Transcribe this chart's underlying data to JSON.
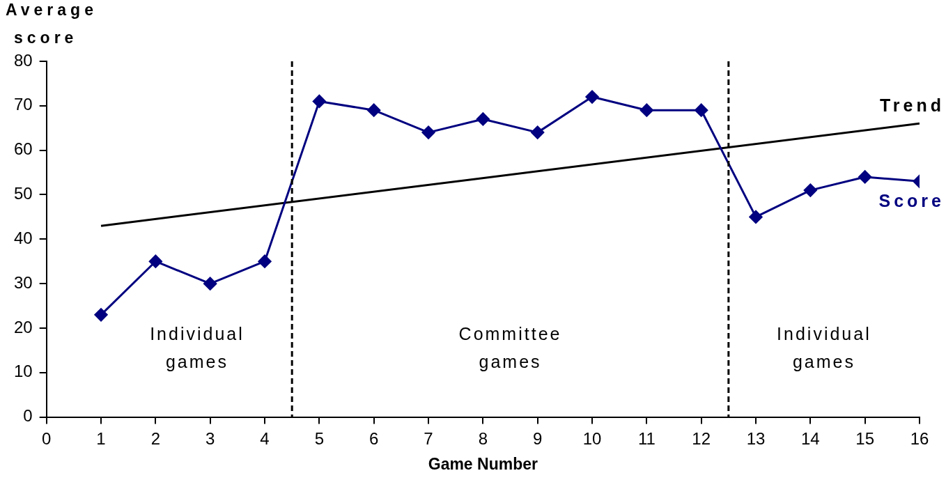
{
  "chart_data": {
    "type": "line",
    "xlabel": "Game Number",
    "ylabel": "Average score",
    "x": [
      1,
      2,
      3,
      4,
      5,
      6,
      7,
      8,
      9,
      10,
      11,
      12,
      13,
      14,
      15,
      16
    ],
    "series": [
      {
        "name": "Score",
        "color": "#000080",
        "marker": "diamond",
        "values": [
          23,
          35,
          30,
          35,
          71,
          69,
          64,
          67,
          64,
          72,
          69,
          69,
          45,
          51,
          54,
          53
        ]
      },
      {
        "name": "Trend",
        "color": "#000000",
        "type": "line",
        "marker": "none",
        "x": [
          1,
          16
        ],
        "values": [
          43,
          66
        ]
      }
    ],
    "xlim": [
      0,
      16
    ],
    "xticks": [
      0,
      1,
      2,
      3,
      4,
      5,
      6,
      7,
      8,
      9,
      10,
      11,
      12,
      13,
      14,
      15,
      16
    ],
    "ylim": [
      0,
      80
    ],
    "yticks": [
      0,
      10,
      20,
      30,
      40,
      50,
      60,
      70,
      80
    ],
    "ref_lines": [
      {
        "axis": "x",
        "value": 4.5,
        "color": "#000000",
        "line_style": "dashed"
      },
      {
        "axis": "x",
        "value": 12.5,
        "color": "#000000",
        "line_style": "dashed"
      }
    ],
    "annotations": [
      "Individual games",
      "Committee games",
      "Individual games"
    ],
    "grid": false,
    "legend": false
  }
}
